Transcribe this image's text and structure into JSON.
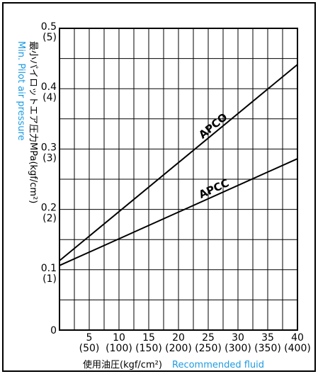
{
  "chart_data": {
    "type": "line",
    "x_range": [
      0,
      40
    ],
    "y_range": [
      0,
      0.5
    ],
    "grid": true,
    "x_ticks": [
      {
        "value": 5,
        "label": "5",
        "sub": "(50)"
      },
      {
        "value": 10,
        "label": "10",
        "sub": "(100)"
      },
      {
        "value": 15,
        "label": "15",
        "sub": "(150)"
      },
      {
        "value": 20,
        "label": "20",
        "sub": "(200)"
      },
      {
        "value": 25,
        "label": "25",
        "sub": "(250)"
      },
      {
        "value": 30,
        "label": "30",
        "sub": "(300)"
      },
      {
        "value": 35,
        "label": "35",
        "sub": "(350)"
      },
      {
        "value": 40,
        "label": "40",
        "sub": "(400)"
      }
    ],
    "y_ticks": [
      {
        "value": 0,
        "label": "0",
        "sub": ""
      },
      {
        "value": 0.1,
        "label": "0.1",
        "sub": "(1)"
      },
      {
        "value": 0.2,
        "label": "0.2",
        "sub": "(2)"
      },
      {
        "value": 0.3,
        "label": "0.3",
        "sub": "(3)"
      },
      {
        "value": 0.4,
        "label": "0.4",
        "sub": "(4)"
      },
      {
        "value": 0.5,
        "label": "0.5",
        "sub": "(5)"
      }
    ],
    "xlabel_jp": "使用油圧(kgf/cm²)",
    "xlabel_en": "Recommended fluid",
    "ylabel_jp": "最小パイロットエア圧力MPa(kgf/cm²)",
    "ylabel_en": "Min. Pilot air pressure",
    "series": [
      {
        "name": "APCO",
        "x": [
          0,
          40
        ],
        "y": [
          0.115,
          0.44
        ]
      },
      {
        "name": "APCC",
        "x": [
          0,
          40
        ],
        "y": [
          0.107,
          0.284
        ]
      }
    ],
    "colors": {
      "axis": "#000000",
      "english_label": "#1e9be0"
    }
  }
}
